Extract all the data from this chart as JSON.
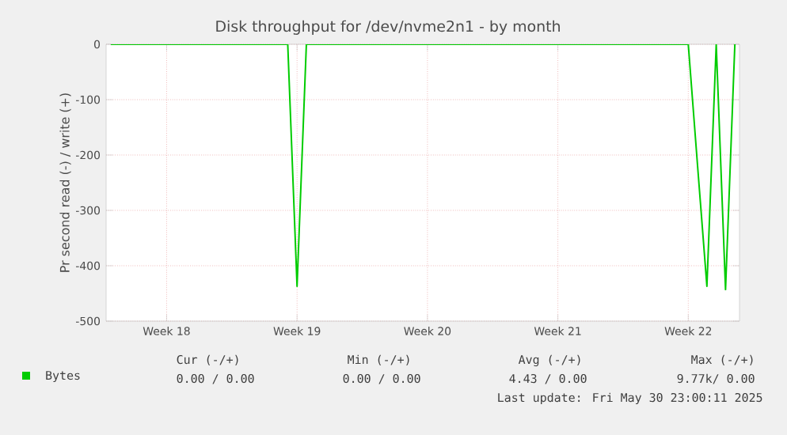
{
  "chart_data": {
    "type": "line",
    "title": "Disk throughput for /dev/nvme2n1 - by month",
    "ylabel": "Pr second read (-) / write (+)",
    "categories": [
      null,
      null,
      null,
      null,
      null,
      null,
      "Week 18",
      null,
      null,
      null,
      null,
      null,
      null,
      null,
      null,
      null,
      null,
      null,
      null,
      null,
      "Week 19",
      null,
      null,
      null,
      null,
      null,
      null,
      null,
      null,
      null,
      null,
      null,
      null,
      null,
      "Week 20",
      null,
      null,
      null,
      null,
      null,
      null,
      null,
      null,
      null,
      null,
      null,
      null,
      null,
      "Week 21",
      null,
      null,
      null,
      null,
      null,
      null,
      null,
      null,
      null,
      null,
      null,
      null,
      null,
      "Week 22",
      null,
      null,
      null,
      null,
      null
    ],
    "series": [
      {
        "name": "Bytes",
        "color": "#00cc00",
        "values": [
          0,
          0,
          0,
          0,
          0,
          0,
          0,
          0,
          0,
          0,
          0,
          0,
          0,
          0,
          0,
          0,
          0,
          0,
          0,
          0,
          -437,
          0,
          0,
          0,
          0,
          0,
          0,
          0,
          0,
          0,
          0,
          0,
          0,
          0,
          0,
          0,
          0,
          0,
          0,
          0,
          0,
          0,
          0,
          0,
          0,
          0,
          0,
          0,
          0,
          0,
          0,
          0,
          0,
          0,
          0,
          0,
          0,
          0,
          0,
          0,
          0,
          0,
          0,
          -220,
          -437,
          0,
          -443,
          0
        ]
      }
    ],
    "ylim": [
      -500,
      0
    ],
    "yticks": [
      -500,
      -400,
      -300,
      -200,
      -100,
      0
    ],
    "grid": true,
    "legend": "bottom left",
    "marker": "none",
    "line_style": "solid",
    "annotations": [
      "Cur (-/+)",
      "Min (-/+)",
      "Avg (-/+)",
      "Max (-/+)",
      "0.00 /  0.00",
      "0.00 /  0.00",
      "4.43 /  0.00",
      "9.77k/  0.00",
      "Last update: Fri May 30 23:00:11 2025"
    ]
  }
}
